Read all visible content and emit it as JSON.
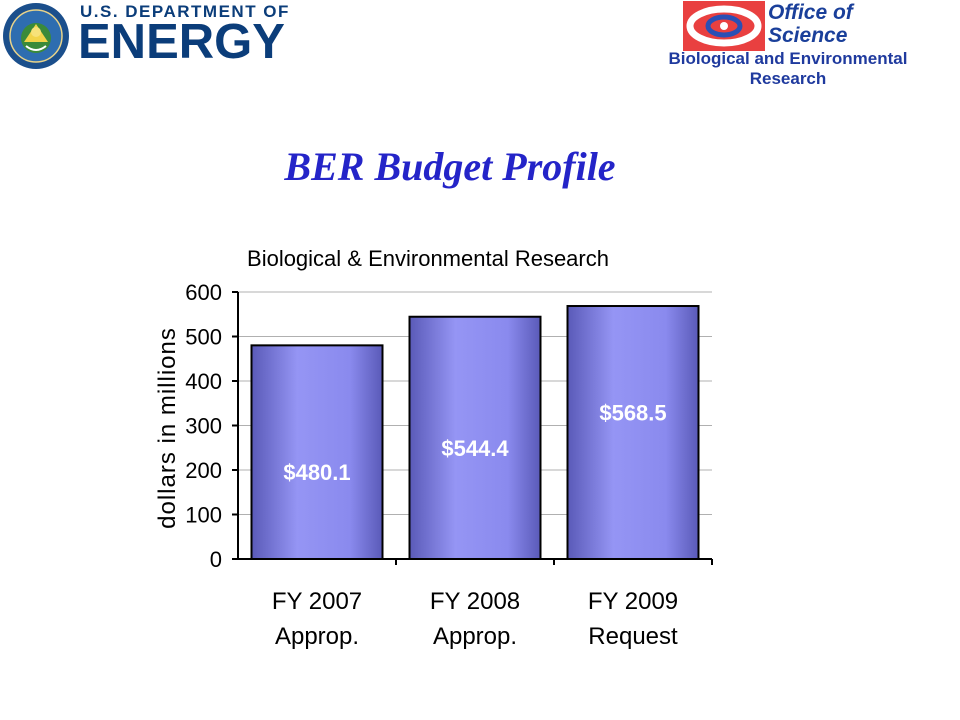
{
  "header": {
    "doe_top": "U.S. DEPARTMENT OF",
    "doe_big": "ENERGY",
    "os_line1": "Office of",
    "os_line2": "Science",
    "subtitle": "Biological and Environmental Research"
  },
  "slide_title": "BER Budget Profile",
  "colors": {
    "title_blue": "#2424c8",
    "bar_fill": "#9595f4",
    "bar_shade": "#5a5ab8",
    "doe_blue": "#0b3d7a"
  },
  "chart_data": {
    "type": "bar",
    "title": "Biological & Environmental Research",
    "xlabel": "",
    "ylabel": "dollars in millions",
    "categories": [
      [
        "FY 2007",
        "Approp."
      ],
      [
        "FY 2008",
        "Approp."
      ],
      [
        "FY 2009",
        "Request"
      ]
    ],
    "values": [
      480.1,
      544.4,
      568.5
    ],
    "data_labels": [
      "$480.1",
      "$544.4",
      "$568.5"
    ],
    "ylim": [
      0,
      600
    ],
    "yticks": [
      0,
      100,
      200,
      300,
      400,
      500,
      600
    ],
    "grid": true,
    "legend": "none"
  }
}
